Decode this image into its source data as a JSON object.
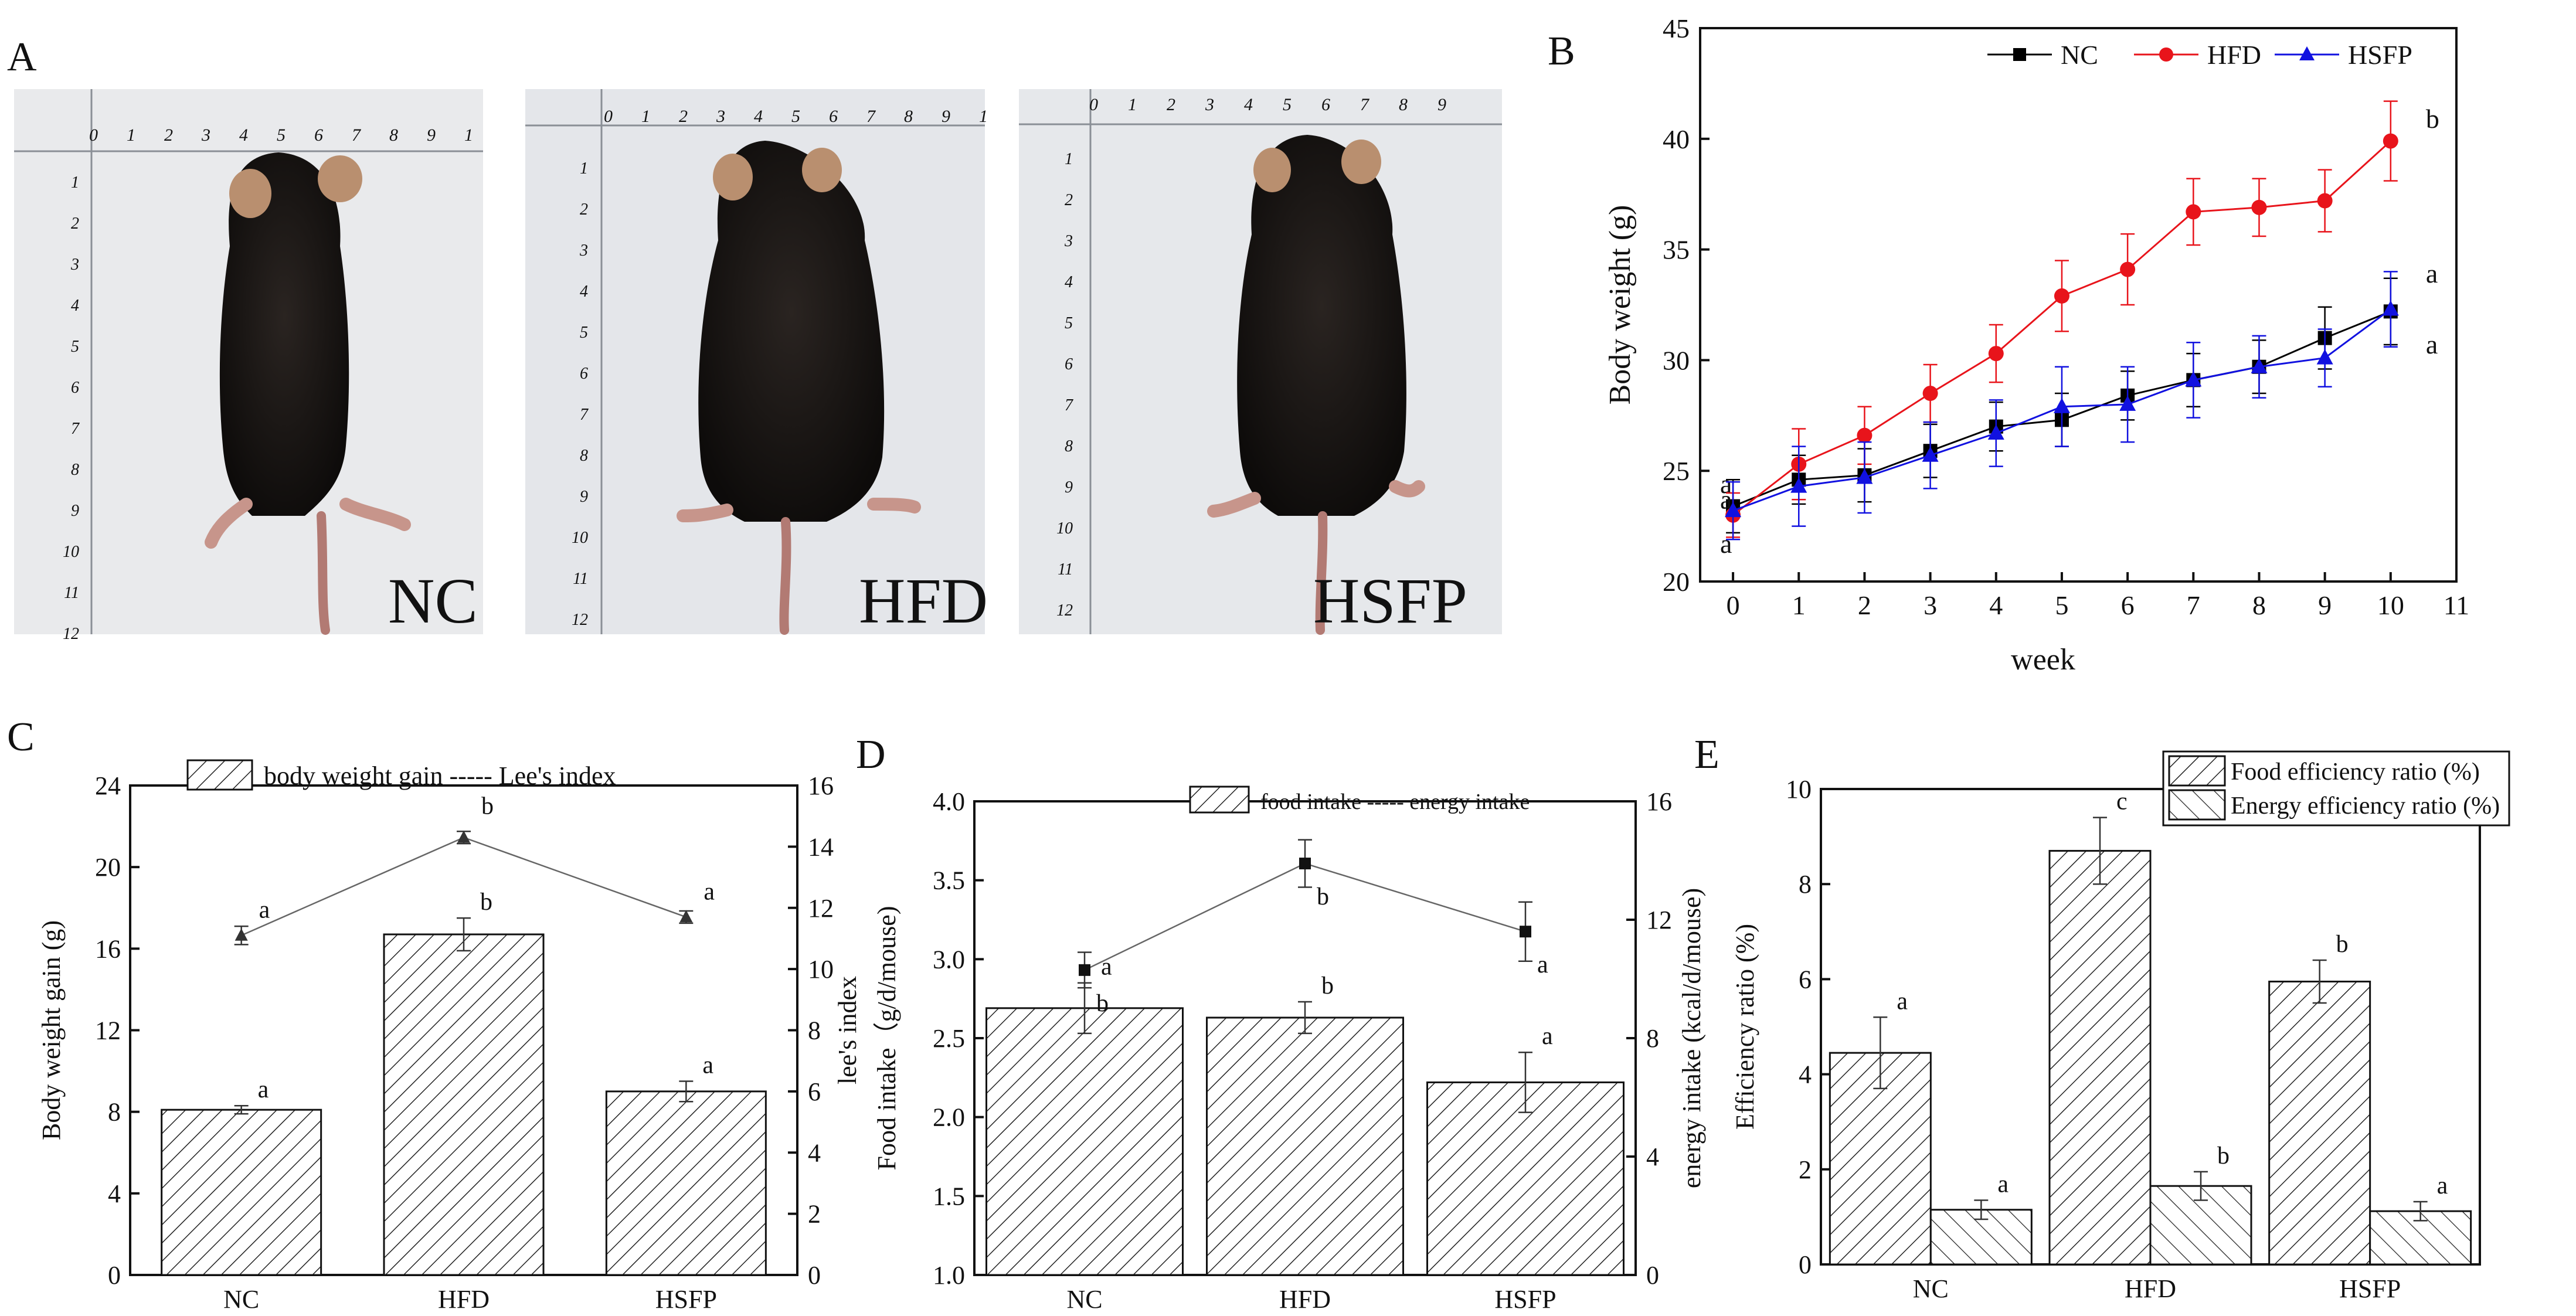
{
  "panel_letters": {
    "A": "A",
    "B": "B",
    "C": "C",
    "D": "D",
    "E": "E"
  },
  "photos": [
    {
      "label": "NC",
      "ruler_top": [
        "0",
        "1",
        "2",
        "3",
        "4",
        "5",
        "6",
        "7",
        "8",
        "9",
        "1"
      ],
      "ruler_side": [
        "1",
        "2",
        "3",
        "4",
        "5",
        "6",
        "7",
        "8",
        "9",
        "10",
        "11",
        "12"
      ]
    },
    {
      "label": "HFD",
      "ruler_top": [
        "0",
        "1",
        "2",
        "3",
        "4",
        "5",
        "6",
        "7",
        "8",
        "9",
        "1"
      ],
      "ruler_side": [
        "1",
        "2",
        "3",
        "4",
        "5",
        "6",
        "7",
        "8",
        "9",
        "10",
        "11",
        "12"
      ]
    },
    {
      "label": "HSFP",
      "ruler_top": [
        "0",
        "1",
        "2",
        "3",
        "4",
        "5",
        "6",
        "7",
        "8",
        "9"
      ],
      "ruler_side": [
        "1",
        "2",
        "3",
        "4",
        "5",
        "6",
        "7",
        "8",
        "9",
        "10",
        "11",
        "12"
      ]
    }
  ],
  "chart_data": [
    {
      "panel": "B",
      "type": "line",
      "xlabel": "week",
      "ylabel": "Body weight (g)",
      "xlim": [
        -0.5,
        11
      ],
      "ylim": [
        20,
        45
      ],
      "xticks": [
        "0",
        "1",
        "2",
        "3",
        "4",
        "5",
        "6",
        "7",
        "8",
        "9",
        "10",
        "11"
      ],
      "yticks": [
        "20",
        "25",
        "30",
        "35",
        "40",
        "45"
      ],
      "x": [
        0,
        1,
        2,
        3,
        4,
        5,
        6,
        7,
        8,
        9,
        10
      ],
      "legend": "top-right",
      "series": [
        {
          "name": "NC",
          "color": "#000000",
          "marker": "square",
          "values": [
            23.4,
            24.6,
            24.8,
            25.9,
            27.0,
            27.3,
            28.4,
            29.1,
            29.7,
            31.0,
            32.2
          ],
          "errors": [
            1.2,
            1.1,
            1.2,
            1.2,
            1.1,
            1.2,
            1.1,
            1.2,
            1.2,
            1.4,
            1.5
          ],
          "end_label": "a",
          "start_label": "a"
        },
        {
          "name": "HFD",
          "color": "#e8141b",
          "marker": "circle",
          "values": [
            23.0,
            25.3,
            26.6,
            28.5,
            30.3,
            32.9,
            34.1,
            36.7,
            36.9,
            37.2,
            39.9
          ],
          "errors": [
            1.0,
            1.6,
            1.3,
            1.3,
            1.3,
            1.6,
            1.6,
            1.5,
            1.3,
            1.4,
            1.8
          ],
          "end_label": "b",
          "start_label": "a"
        },
        {
          "name": "HSFP",
          "color": "#1111e0",
          "marker": "triangle",
          "values": [
            23.2,
            24.3,
            24.7,
            25.7,
            26.7,
            27.9,
            28.0,
            29.1,
            29.7,
            30.1,
            32.3
          ],
          "errors": [
            1.3,
            1.8,
            1.6,
            1.5,
            1.5,
            1.8,
            1.7,
            1.7,
            1.4,
            1.3,
            1.7
          ],
          "end_label": "a",
          "start_label": "a"
        }
      ]
    },
    {
      "panel": "C",
      "type": "bar",
      "categories": [
        "NC",
        "HFD",
        "HSFP"
      ],
      "ylabel": "Body weight gain (g)",
      "y2label": "lee's index",
      "ylim": [
        0,
        24
      ],
      "y2lim": [
        0,
        16
      ],
      "yticks": [
        "0",
        "4",
        "8",
        "12",
        "16",
        "20",
        "24"
      ],
      "y2ticks": [
        "0",
        "2",
        "4",
        "6",
        "8",
        "10",
        "12",
        "14",
        "16"
      ],
      "legend_text": "body weight gain -----    Lee's index",
      "series": [
        {
          "name": "body weight gain",
          "kind": "bar",
          "values": [
            8.1,
            16.7,
            9.0
          ],
          "errors": [
            0.2,
            0.8,
            0.5
          ],
          "labels": [
            "a",
            "b",
            "a"
          ]
        },
        {
          "name": "Lee's index",
          "kind": "line",
          "axis": "right",
          "values": [
            11.1,
            14.3,
            11.7
          ],
          "errors": [
            0.3,
            0.2,
            0.2
          ],
          "labels": [
            "a",
            "b",
            "a"
          ]
        }
      ]
    },
    {
      "panel": "D",
      "type": "bar",
      "categories": [
        "NC",
        "HFD",
        "HSFP"
      ],
      "ylabel": "Food intake（g/d/mouse)",
      "y2label": "energy intake (kcal/d/mouse)",
      "ylim": [
        1.0,
        4.0
      ],
      "y2lim": [
        0,
        16
      ],
      "yticks": [
        "1.0",
        "1.5",
        "2.0",
        "2.5",
        "3.0",
        "3.5",
        "4.0"
      ],
      "y2ticks": [
        "0",
        "4",
        "8",
        "12",
        "16"
      ],
      "legend_text": "food intake -----  energy intake",
      "series": [
        {
          "name": "food intake",
          "kind": "bar",
          "values": [
            2.69,
            2.63,
            2.22
          ],
          "errors": [
            0.16,
            0.1,
            0.19
          ],
          "labels": [
            "a",
            "b",
            "a"
          ]
        },
        {
          "name": "energy intake",
          "kind": "line",
          "axis": "right",
          "values": [
            10.3,
            13.9,
            11.6
          ],
          "errors": [
            0.6,
            0.8,
            1.0
          ],
          "labels": [
            "b",
            "b",
            "a"
          ]
        }
      ]
    },
    {
      "panel": "E",
      "type": "bar",
      "categories": [
        "NC",
        "HFD",
        "HSFP"
      ],
      "ylabel": "Efficiency ratio (%)",
      "ylim": [
        0,
        10
      ],
      "yticks": [
        "0",
        "2",
        "4",
        "6",
        "8",
        "10"
      ],
      "legend": "top-right",
      "series": [
        {
          "name": "Food efficiency ratio (%)",
          "kind": "bar",
          "values": [
            4.45,
            8.7,
            5.95
          ],
          "errors": [
            0.75,
            0.7,
            0.45
          ],
          "labels": [
            "a",
            "c",
            "b"
          ]
        },
        {
          "name": "Energy efficiency ratio (%)",
          "kind": "bar",
          "values": [
            1.15,
            1.65,
            1.12
          ],
          "errors": [
            0.2,
            0.3,
            0.2
          ],
          "labels": [
            "a",
            "b",
            "a"
          ]
        }
      ]
    }
  ]
}
